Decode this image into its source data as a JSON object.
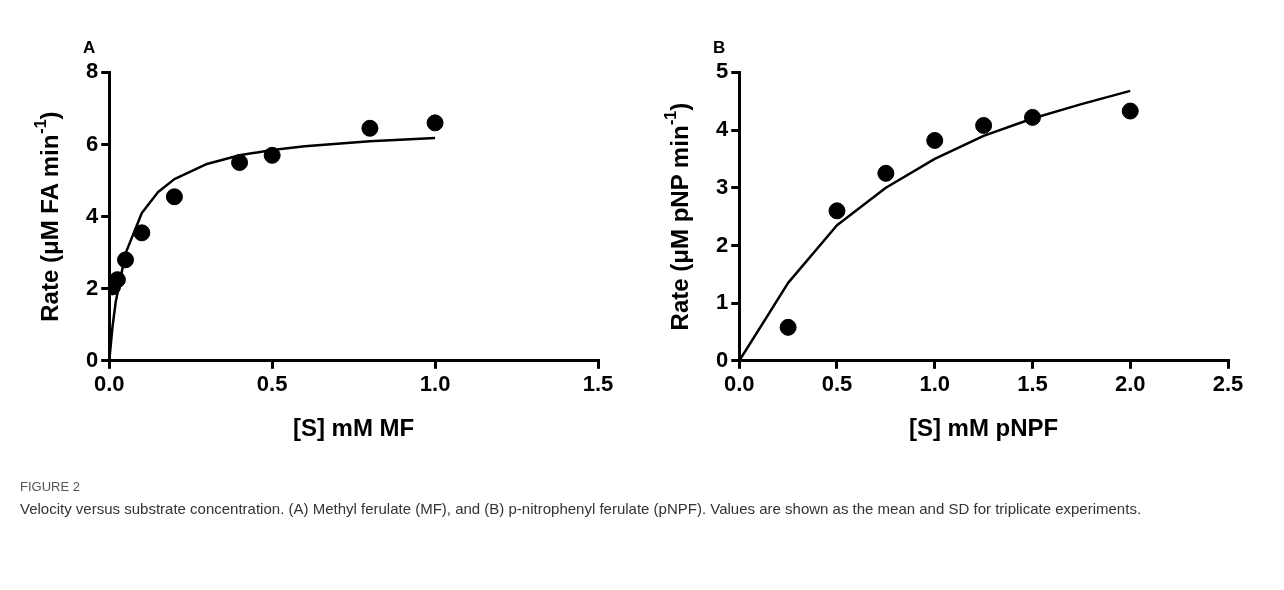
{
  "chart_data": [
    {
      "type": "scatter",
      "title": "A",
      "xlabel": "[S] mM MF",
      "ylabel": "Rate (μM FA min$^{-1}$)",
      "xlim": [
        0,
        1.5
      ],
      "xticks": [
        {
          "value": 0,
          "label": "0.0"
        },
        {
          "value": 0.5,
          "label": "0.5"
        },
        {
          "value": 1,
          "label": "1.0"
        },
        {
          "value": 1.5,
          "label": "1.5"
        }
      ],
      "ylim": [
        0,
        8
      ],
      "yticks": [
        0,
        2,
        4,
        6,
        8
      ],
      "grid": false,
      "legend": false,
      "marker": "circle",
      "series": [
        {
          "type": "scatter",
          "color": "#000000",
          "x": [
            0.01,
            0.025,
            0.05,
            0.1,
            0.2,
            0.4,
            0.5,
            0.8,
            1.0
          ],
          "values": [
            2.05,
            2.25,
            2.8,
            3.55,
            4.55,
            5.5,
            5.7,
            6.45,
            6.6
          ]
        },
        {
          "type": "line",
          "color": "#000000",
          "marker": "none",
          "line_style": "solid",
          "x": [
            0,
            0.01,
            0.02,
            0.05,
            0.1,
            0.15,
            0.2,
            0.3,
            0.4,
            0.5,
            0.6,
            0.8,
            1.0
          ],
          "values": [
            0,
            0.94,
            1.64,
            2.98,
            4.1,
            4.68,
            5.04,
            5.46,
            5.7,
            5.85,
            5.95,
            6.09,
            6.18
          ]
        }
      ]
    },
    {
      "type": "scatter",
      "title": "B",
      "xlabel": "[S] mM pNPF",
      "ylabel": "Rate (μM pNP min$^{-1}$)",
      "xlim": [
        0,
        2.5
      ],
      "xticks": [
        {
          "value": 0,
          "label": "0.0"
        },
        {
          "value": 0.5,
          "label": "0.5"
        },
        {
          "value": 1,
          "label": "1.0"
        },
        {
          "value": 1.5,
          "label": "1.5"
        },
        {
          "value": 2,
          "label": "2.0"
        },
        {
          "value": 2.5,
          "label": "2.5"
        }
      ],
      "ylim": [
        0,
        5
      ],
      "yticks": [
        0,
        1,
        2,
        3,
        4,
        5
      ],
      "grid": false,
      "legend": false,
      "marker": "circle",
      "annotations": [
        "FIGURE 2",
        "Velocity versus substrate concentration. (A) Methyl ferulate (MF), and (B) p-nitrophenyl ferulate (pNPF). Values are shown as the mean and SD for triplicate experiments."
      ],
      "series": [
        {
          "type": "scatter",
          "color": "#000000",
          "x": [
            0.25,
            0.5,
            0.75,
            1.0,
            1.25,
            1.5,
            2.0
          ],
          "values": [
            0.58,
            2.6,
            3.25,
            3.82,
            4.08,
            4.22,
            4.33
          ]
        },
        {
          "type": "line",
          "color": "#000000",
          "marker": "none",
          "line_style": "solid",
          "x": [
            0,
            0.25,
            0.5,
            0.75,
            1.0,
            1.25,
            1.5,
            1.75,
            2.0
          ],
          "values": [
            0,
            1.35,
            2.35,
            3.0,
            3.5,
            3.9,
            4.2,
            4.45,
            4.68
          ]
        }
      ]
    }
  ]
}
